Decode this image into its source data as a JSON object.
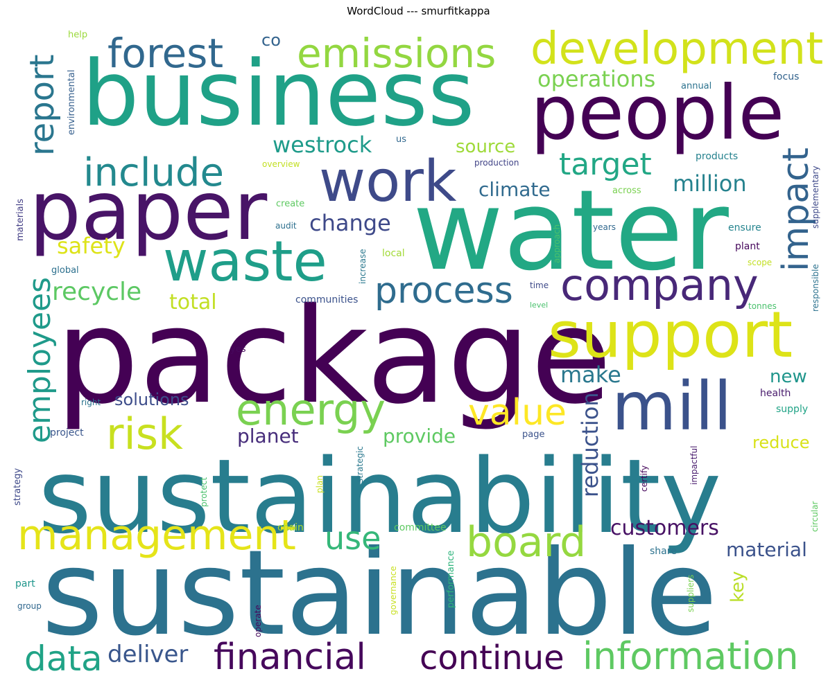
{
  "title": "WordCloud --- smurfitkappa",
  "words": [
    {
      "text": "package",
      "color": "#440154",
      "size": 9
    },
    {
      "text": "sustainable",
      "color": "#2c728e",
      "size": 9
    },
    {
      "text": "sustainability",
      "color": "#287d8e",
      "size": 9
    },
    {
      "text": "water",
      "color": "#22a884",
      "size": 9
    },
    {
      "text": "business",
      "color": "#1fa187",
      "size": 9
    },
    {
      "text": "paper",
      "color": "#481467",
      "size": 8
    },
    {
      "text": "people",
      "color": "#440154",
      "size": 8
    },
    {
      "text": "mill",
      "color": "#3b528b",
      "size": 7
    },
    {
      "text": "support",
      "color": "#dde318",
      "size": 7
    },
    {
      "text": "waste",
      "color": "#1f9e89",
      "size": 6
    },
    {
      "text": "work",
      "color": "#3e4a89",
      "size": 6
    },
    {
      "text": "company",
      "color": "#482878",
      "size": 5
    },
    {
      "text": "development",
      "color": "#d2e21b",
      "size": 5
    },
    {
      "text": "emissions",
      "color": "#93d741",
      "size": 5
    },
    {
      "text": "forest",
      "color": "#31688e",
      "size": 5
    },
    {
      "text": "energy",
      "color": "#7ad151",
      "size": 5
    },
    {
      "text": "management",
      "color": "#e5e419",
      "size": 5
    },
    {
      "text": "board",
      "color": "#95d840",
      "size": 5
    },
    {
      "text": "risk",
      "color": "#c8e020",
      "size": 5
    },
    {
      "text": "information",
      "color": "#5ec962",
      "size": 5
    },
    {
      "text": "financial",
      "color": "#46085c",
      "size": 4
    },
    {
      "text": "continue",
      "color": "#440154",
      "size": 4
    },
    {
      "text": "value",
      "color": "#fde725",
      "size": 4
    },
    {
      "text": "data",
      "color": "#20a386",
      "size": 4
    },
    {
      "text": "include",
      "color": "#23898e",
      "size": 4
    },
    {
      "text": "process",
      "color": "#2f6c8e",
      "size": 4
    },
    {
      "text": "impact",
      "color": "#33638d",
      "size": 4
    },
    {
      "text": "employees",
      "color": "#1f9a8a",
      "size": 4
    },
    {
      "text": "report",
      "color": "#2a768e",
      "size": 4
    },
    {
      "text": "use",
      "color": "#35b779",
      "size": 4
    },
    {
      "text": "target",
      "color": "#22a785",
      "size": 4
    },
    {
      "text": "recycle",
      "color": "#5cc863",
      "size": 3
    },
    {
      "text": "reduction",
      "color": "#3b528b",
      "size": 3
    },
    {
      "text": "customers",
      "color": "#471164",
      "size": 3
    },
    {
      "text": "deliver",
      "color": "#39568c",
      "size": 3
    },
    {
      "text": "material",
      "color": "#3b528b",
      "size": 3
    },
    {
      "text": "change",
      "color": "#3e4989",
      "size": 3
    },
    {
      "text": "westrock",
      "color": "#1e9b8a",
      "size": 3
    },
    {
      "text": "operations",
      "color": "#7ad151",
      "size": 3
    },
    {
      "text": "million",
      "color": "#26828e",
      "size": 3
    },
    {
      "text": "make",
      "color": "#2a788e",
      "size": 3
    },
    {
      "text": "safety",
      "color": "#dde318",
      "size": 3
    },
    {
      "text": "planet",
      "color": "#472d7b",
      "size": 3
    },
    {
      "text": "provide",
      "color": "#5ec962",
      "size": 3
    },
    {
      "text": "total",
      "color": "#c2df23",
      "size": 3
    },
    {
      "text": "source",
      "color": "#9fda3a",
      "size": 3
    },
    {
      "text": "climate",
      "color": "#306a8e",
      "size": 3
    },
    {
      "text": "solutions",
      "color": "#3d4d8a",
      "size": 3
    },
    {
      "text": "new",
      "color": "#1f958b",
      "size": 3
    },
    {
      "text": "reduce",
      "color": "#d8e219",
      "size": 3
    },
    {
      "text": "key",
      "color": "#bade28",
      "size": 3
    },
    {
      "text": "co",
      "color": "#33638d",
      "size": 2
    },
    {
      "text": "help",
      "color": "#9bd93c",
      "size": 1
    },
    {
      "text": "environmental",
      "color": "#355f8d",
      "size": 1
    },
    {
      "text": "materials",
      "color": "#433e85",
      "size": 1
    },
    {
      "text": "global",
      "color": "#2d708e",
      "size": 1
    },
    {
      "text": "right",
      "color": "#2b748e",
      "size": 1
    },
    {
      "text": "project",
      "color": "#39568c",
      "size": 1
    },
    {
      "text": "strategy",
      "color": "#3e4989",
      "size": 1
    },
    {
      "text": "part",
      "color": "#1f968b",
      "size": 1
    },
    {
      "text": "group",
      "color": "#31688e",
      "size": 1
    },
    {
      "text": "us",
      "color": "#31688e",
      "size": 1
    },
    {
      "text": "overview",
      "color": "#c2df23",
      "size": 1
    },
    {
      "text": "create",
      "color": "#5ec962",
      "size": 1
    },
    {
      "text": "audit",
      "color": "#2d708e",
      "size": 1
    },
    {
      "text": "local",
      "color": "#a2da37",
      "size": 1
    },
    {
      "text": "increase",
      "color": "#2a788e",
      "size": 1
    },
    {
      "text": "communities",
      "color": "#3b528b",
      "size": 1
    },
    {
      "text": "yes",
      "color": "#46085c",
      "size": 1
    },
    {
      "text": "production",
      "color": "#414487",
      "size": 1
    },
    {
      "text": "across",
      "color": "#7ad151",
      "size": 1
    },
    {
      "text": "approach",
      "color": "#4ac16d",
      "size": 1
    },
    {
      "text": "years",
      "color": "#31688e",
      "size": 1
    },
    {
      "text": "time",
      "color": "#3e4a89",
      "size": 1
    },
    {
      "text": "level",
      "color": "#4ac16d",
      "size": 1
    },
    {
      "text": "products",
      "color": "#26828e",
      "size": 1
    },
    {
      "text": "annual",
      "color": "#2c728e",
      "size": 1
    },
    {
      "text": "focus",
      "color": "#33638d",
      "size": 1
    },
    {
      "text": "supplementary",
      "color": "#3e4989",
      "size": 1
    },
    {
      "text": "ensure",
      "color": "#25848e",
      "size": 1
    },
    {
      "text": "plant",
      "color": "#46085c",
      "size": 1
    },
    {
      "text": "scope",
      "color": "#c2df23",
      "size": 1
    },
    {
      "text": "responsible",
      "color": "#2c728e",
      "size": 1
    },
    {
      "text": "tonnes",
      "color": "#4ac16d",
      "size": 1
    },
    {
      "text": "health",
      "color": "#481a6c",
      "size": 1
    },
    {
      "text": "supply",
      "color": "#20a386",
      "size": 1
    },
    {
      "text": "page",
      "color": "#3b528b",
      "size": 1
    },
    {
      "text": "strategic",
      "color": "#2a788e",
      "size": 1
    },
    {
      "text": "plan",
      "color": "#c8e020",
      "size": 1
    },
    {
      "text": "protect",
      "color": "#4ac16d",
      "size": 1
    },
    {
      "text": "chain",
      "color": "#addc30",
      "size": 1
    },
    {
      "text": "committee",
      "color": "#5ec962",
      "size": 1
    },
    {
      "text": "governance",
      "color": "#c8e020",
      "size": 1
    },
    {
      "text": "performance",
      "color": "#2fb47c",
      "size": 1
    },
    {
      "text": "operate",
      "color": "#46085c",
      "size": 1
    },
    {
      "text": "certify",
      "color": "#46085c",
      "size": 1
    },
    {
      "text": "impactful",
      "color": "#481a6c",
      "size": 1
    },
    {
      "text": "share",
      "color": "#2c728e",
      "size": 1
    },
    {
      "text": "suppliers",
      "color": "#7ad151",
      "size": 1
    },
    {
      "text": "circular",
      "color": "#5ec962",
      "size": 1
    }
  ]
}
